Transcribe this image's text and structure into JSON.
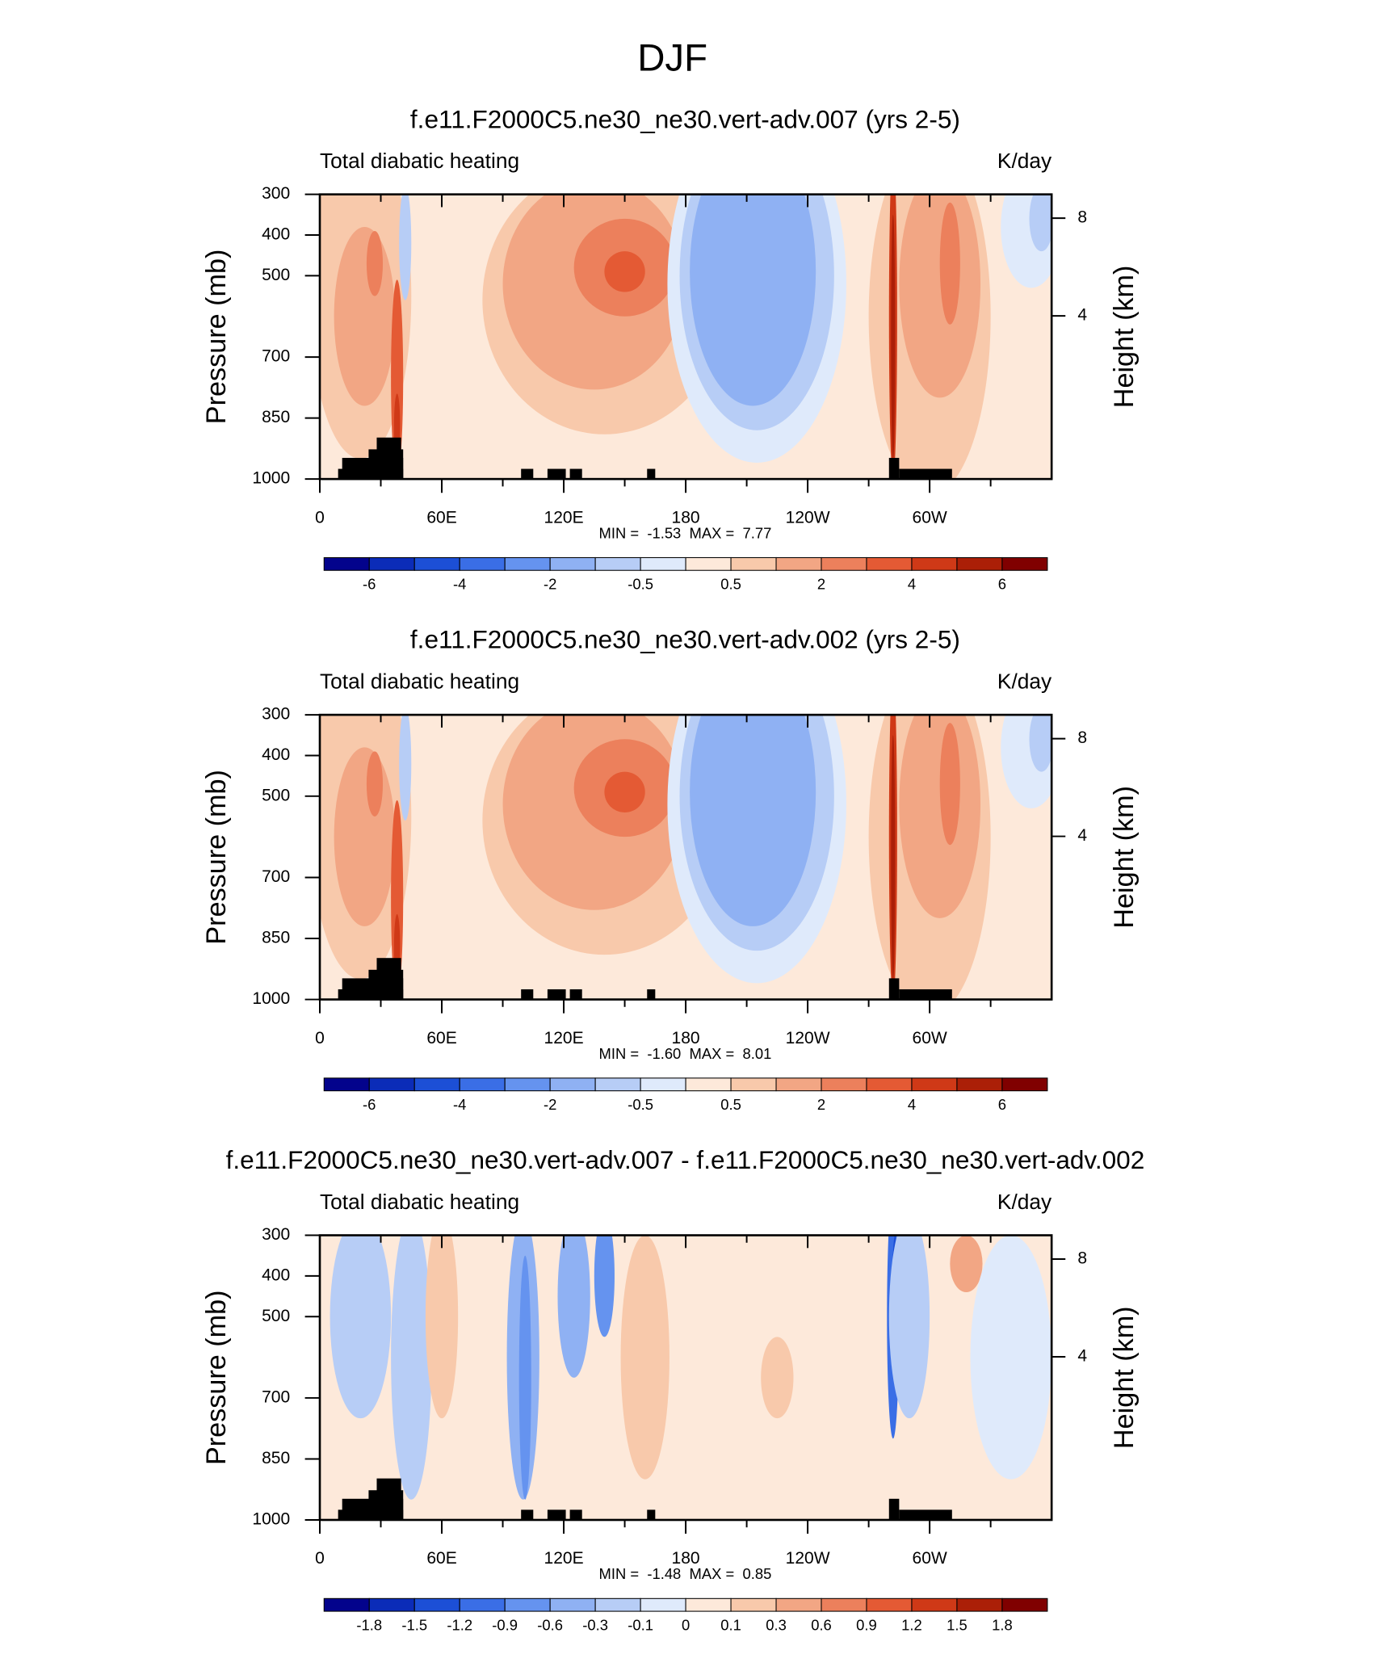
{
  "title": "DJF",
  "chart_data": [
    {
      "type": "contour",
      "title": "f.e11.F2000C5.ne30_ne30.vert-adv.007 (yrs 2-5)",
      "left_title": "Total diabatic heating",
      "right_title": "K/day",
      "ylabel": "Pressure (mb)",
      "y2label": "Height (km)",
      "ylim": [
        1000,
        300
      ],
      "yticks": [
        300,
        400,
        500,
        700,
        850,
        1000
      ],
      "y2ticks": [
        8,
        4
      ],
      "xlim": [
        0,
        360
      ],
      "xticks": [
        0,
        {
          "value": 60,
          "label": "60E"
        },
        {
          "value": 120,
          "label": "120E"
        },
        180,
        {
          "value": 240,
          "label": "120W"
        },
        {
          "value": 300,
          "label": "60W"
        }
      ],
      "xminorticks": [
        30,
        90,
        150,
        210,
        270,
        330
      ],
      "stats": "MIN =  -1.53  MAX =  7.77",
      "colorbar": {
        "colors": [
          "#03038c",
          "#0b2cb8",
          "#1c4fd6",
          "#3a6ee6",
          "#6593ef",
          "#8fb1f3",
          "#b7cdf6",
          "#dfeafb",
          "#fde9da",
          "#f8c9ab",
          "#f2a684",
          "#ec805c",
          "#e45a34",
          "#cf3917",
          "#ab1f07",
          "#800000"
        ],
        "labels": [
          -6,
          -4,
          -2,
          -0.5,
          0.5,
          2,
          4,
          6
        ]
      }
    },
    {
      "type": "contour",
      "title": "f.e11.F2000C5.ne30_ne30.vert-adv.002 (yrs 2-5)",
      "left_title": "Total diabatic heating",
      "right_title": "K/day",
      "ylabel": "Pressure (mb)",
      "y2label": "Height (km)",
      "ylim": [
        1000,
        300
      ],
      "yticks": [
        300,
        400,
        500,
        700,
        850,
        1000
      ],
      "y2ticks": [
        8,
        4
      ],
      "xlim": [
        0,
        360
      ],
      "xticks": [
        0,
        {
          "value": 60,
          "label": "60E"
        },
        {
          "value": 120,
          "label": "120E"
        },
        180,
        {
          "value": 240,
          "label": "120W"
        },
        {
          "value": 300,
          "label": "60W"
        }
      ],
      "xminorticks": [
        30,
        90,
        150,
        210,
        270,
        330
      ],
      "stats": "MIN =  -1.60  MAX =  8.01",
      "colorbar": {
        "colors": [
          "#03038c",
          "#0b2cb8",
          "#1c4fd6",
          "#3a6ee6",
          "#6593ef",
          "#8fb1f3",
          "#b7cdf6",
          "#dfeafb",
          "#fde9da",
          "#f8c9ab",
          "#f2a684",
          "#ec805c",
          "#e45a34",
          "#cf3917",
          "#ab1f07",
          "#800000"
        ],
        "labels": [
          -6,
          -4,
          -2,
          -0.5,
          0.5,
          2,
          4,
          6
        ]
      }
    },
    {
      "type": "contour",
      "title": "f.e11.F2000C5.ne30_ne30.vert-adv.007 - f.e11.F2000C5.ne30_ne30.vert-adv.002",
      "left_title": "Total diabatic heating",
      "right_title": "K/day",
      "ylabel": "Pressure (mb)",
      "y2label": "Height (km)",
      "ylim": [
        1000,
        300
      ],
      "yticks": [
        300,
        400,
        500,
        700,
        850,
        1000
      ],
      "y2ticks": [
        8,
        4
      ],
      "xlim": [
        0,
        360
      ],
      "xticks": [
        0,
        {
          "value": 60,
          "label": "60E"
        },
        {
          "value": 120,
          "label": "120E"
        },
        180,
        {
          "value": 240,
          "label": "120W"
        },
        {
          "value": 300,
          "label": "60W"
        }
      ],
      "xminorticks": [
        30,
        90,
        150,
        210,
        270,
        330
      ],
      "stats": "MIN =  -1.48  MAX =  0.85",
      "colorbar": {
        "colors": [
          "#03038c",
          "#0b2cb8",
          "#1c4fd6",
          "#3a6ee6",
          "#6593ef",
          "#8fb1f3",
          "#b7cdf6",
          "#dfeafb",
          "#fde9da",
          "#f8c9ab",
          "#f2a684",
          "#ec805c",
          "#e45a34",
          "#cf3917",
          "#ab1f07",
          "#800000"
        ],
        "labels": [
          -1.8,
          -1.5,
          -1.2,
          -0.9,
          -0.6,
          -0.3,
          -0.1,
          0,
          0.1,
          0.3,
          0.6,
          0.9,
          1.2,
          1.5,
          1.8
        ]
      }
    }
  ]
}
